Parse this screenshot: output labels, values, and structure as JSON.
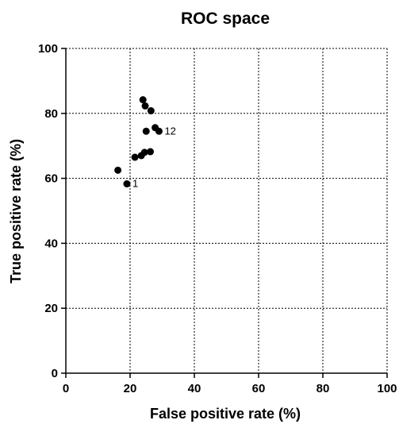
{
  "chart_data": {
    "type": "scatter",
    "title": "ROC space",
    "xlabel": "False positive rate  (%)",
    "ylabel": "True positive rate (%)",
    "xlim": [
      0,
      100
    ],
    "ylim": [
      0,
      100
    ],
    "xticks": [
      0,
      20,
      40,
      60,
      80,
      100
    ],
    "yticks": [
      0,
      20,
      40,
      60,
      80,
      100
    ],
    "grid": true,
    "legend": "none",
    "series": [
      {
        "values": [
          {
            "x": 16.2,
            "y": 62.5
          },
          {
            "x": 19.0,
            "y": 58.3
          },
          {
            "x": 21.5,
            "y": 66.5
          },
          {
            "x": 23.5,
            "y": 67.0
          },
          {
            "x": 24.5,
            "y": 68.0
          },
          {
            "x": 26.3,
            "y": 68.2
          },
          {
            "x": 24.0,
            "y": 84.2
          },
          {
            "x": 24.7,
            "y": 82.3
          },
          {
            "x": 26.5,
            "y": 80.8
          },
          {
            "x": 25.0,
            "y": 74.5
          },
          {
            "x": 27.8,
            "y": 75.6
          },
          {
            "x": 29.0,
            "y": 74.5
          }
        ]
      }
    ],
    "annotations": [
      {
        "text": "1",
        "x": 19.0,
        "y": 58.3
      },
      {
        "text": "12",
        "x": 29.0,
        "y": 74.5
      }
    ],
    "colors": {
      "marker": "#000000",
      "axis": "#000000",
      "grid": "#000000"
    }
  }
}
